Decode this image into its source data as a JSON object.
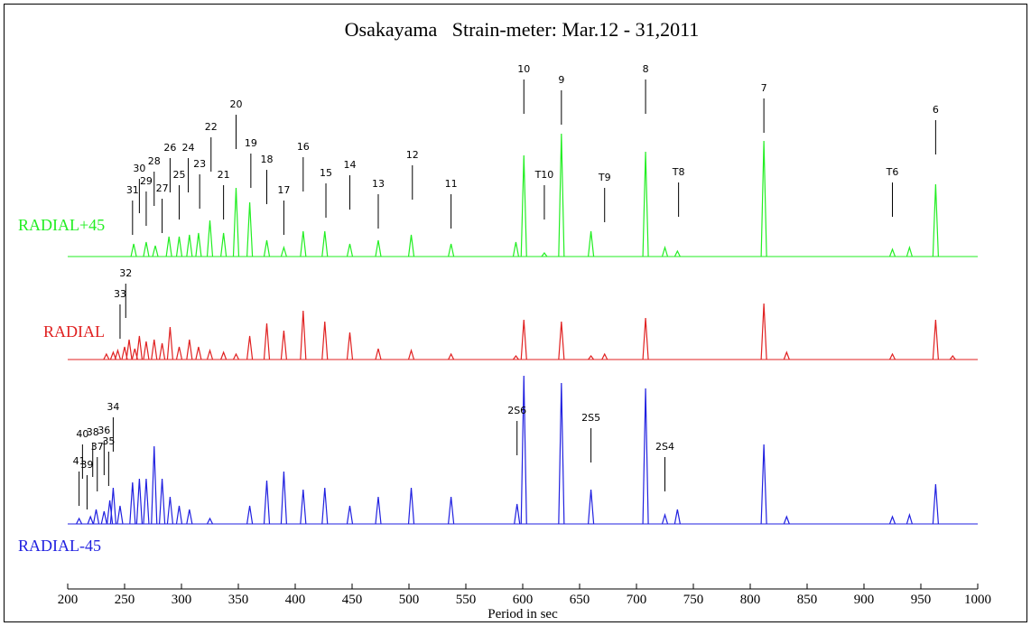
{
  "chart_data": {
    "type": "spectrum",
    "title": "Osakayama   Strain-meter: Mar.12 - 31,2011",
    "xlabel": "Period in sec",
    "xlim": [
      200,
      1000
    ],
    "xticks": [
      200,
      250,
      300,
      350,
      400,
      450,
      500,
      550,
      600,
      650,
      700,
      750,
      800,
      850,
      900,
      950,
      1000
    ],
    "series": [
      {
        "name": "RADIAL+45",
        "color": "#22ee22",
        "x": [
          258,
          269,
          277,
          289,
          298,
          307,
          315,
          325,
          337,
          348,
          360,
          375,
          390,
          407,
          426,
          448,
          473,
          502,
          537,
          594,
          601,
          619,
          634,
          660,
          708,
          725,
          736,
          812,
          925,
          940,
          963
        ],
        "values": [
          14,
          16,
          12,
          22,
          22,
          24,
          26,
          40,
          26,
          76,
          60,
          18,
          10,
          28,
          28,
          14,
          18,
          24,
          14,
          16,
          112,
          4,
          136,
          28,
          116,
          10,
          6,
          128,
          8,
          10,
          80
        ],
        "annotations": [
          {
            "label": "31",
            "x": 257
          },
          {
            "label": "30",
            "x": 263
          },
          {
            "label": "29",
            "x": 269
          },
          {
            "label": "28",
            "x": 276
          },
          {
            "label": "27",
            "x": 283
          },
          {
            "label": "26",
            "x": 290
          },
          {
            "label": "25",
            "x": 298
          },
          {
            "label": "24",
            "x": 306
          },
          {
            "label": "23",
            "x": 316
          },
          {
            "label": "22",
            "x": 326
          },
          {
            "label": "21",
            "x": 337
          },
          {
            "label": "20",
            "x": 348
          },
          {
            "label": "19",
            "x": 361
          },
          {
            "label": "18",
            "x": 375
          },
          {
            "label": "17",
            "x": 390
          },
          {
            "label": "16",
            "x": 407
          },
          {
            "label": "15",
            "x": 427
          },
          {
            "label": "14",
            "x": 448
          },
          {
            "label": "13",
            "x": 473
          },
          {
            "label": "12",
            "x": 503
          },
          {
            "label": "11",
            "x": 537
          },
          {
            "label": "10",
            "x": 601
          },
          {
            "label": "T10",
            "x": 619
          },
          {
            "label": "9",
            "x": 634
          },
          {
            "label": "T9",
            "x": 672
          },
          {
            "label": "8",
            "x": 708
          },
          {
            "label": "T8",
            "x": 737
          },
          {
            "label": "7",
            "x": 812
          },
          {
            "label": "T6",
            "x": 925
          },
          {
            "label": "6",
            "x": 963
          }
        ]
      },
      {
        "name": "RADIAL",
        "color": "#e02020",
        "x": [
          234,
          240,
          244,
          250,
          254,
          259,
          263,
          269,
          276,
          283,
          290,
          298,
          307,
          315,
          325,
          337,
          348,
          360,
          375,
          390,
          407,
          426,
          448,
          473,
          502,
          537,
          594,
          601,
          634,
          660,
          672,
          708,
          812,
          832,
          925,
          963,
          978
        ],
        "values": [
          6,
          8,
          10,
          14,
          22,
          12,
          26,
          20,
          22,
          18,
          36,
          14,
          22,
          14,
          10,
          8,
          6,
          26,
          40,
          32,
          54,
          42,
          30,
          12,
          10,
          6,
          4,
          44,
          42,
          4,
          6,
          46,
          62,
          8,
          6,
          44,
          4
        ],
        "annotations": [
          {
            "label": "33",
            "x": 246
          },
          {
            "label": "32",
            "x": 251
          }
        ]
      },
      {
        "name": "RADIAL-45",
        "color": "#2020e0",
        "x": [
          210,
          220,
          225,
          232,
          237,
          240,
          246,
          257,
          263,
          269,
          276,
          283,
          290,
          298,
          307,
          325,
          360,
          375,
          390,
          407,
          426,
          448,
          473,
          502,
          537,
          595,
          601,
          634,
          660,
          708,
          725,
          736,
          812,
          832,
          925,
          940,
          963
        ],
        "values": [
          6,
          8,
          16,
          14,
          26,
          40,
          20,
          46,
          50,
          50,
          86,
          50,
          30,
          20,
          16,
          6,
          20,
          48,
          58,
          38,
          40,
          20,
          30,
          40,
          30,
          22,
          164,
          156,
          38,
          150,
          10,
          16,
          88,
          8,
          8,
          10,
          44
        ],
        "annotations": [
          {
            "label": "41",
            "x": 210
          },
          {
            "label": "40",
            "x": 213
          },
          {
            "label": "39",
            "x": 217
          },
          {
            "label": "38",
            "x": 222
          },
          {
            "label": "37",
            "x": 226
          },
          {
            "label": "36",
            "x": 232
          },
          {
            "label": "35",
            "x": 236
          },
          {
            "label": "34",
            "x": 240
          },
          {
            "label": "2S6",
            "x": 595
          },
          {
            "label": "2S5",
            "x": 660
          },
          {
            "label": "2S4",
            "x": 725
          }
        ]
      }
    ]
  }
}
